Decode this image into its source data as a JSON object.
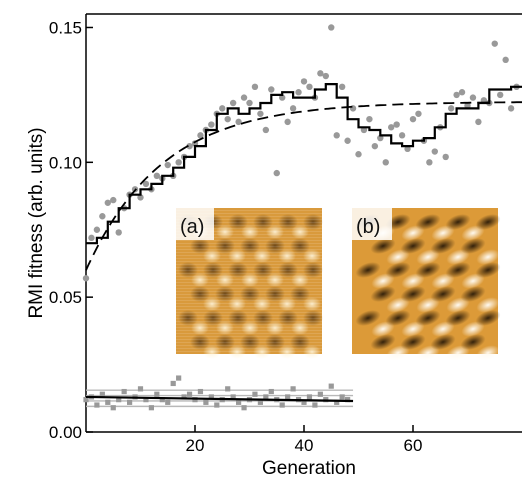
{
  "chart_data": {
    "type": "scatter",
    "title": "",
    "xlabel": "Generation",
    "ylabel": "RMI fitness (arb. units)",
    "xlim": [
      0,
      80
    ],
    "ylim": [
      0,
      0.155
    ],
    "xticks": [
      20,
      40,
      60
    ],
    "xtick_labels": [
      "20",
      "40",
      "60"
    ],
    "yticks": [
      0.0,
      0.05,
      0.1,
      0.15
    ],
    "ytick_labels": [
      "0.00",
      "0.05",
      "0.10",
      "0.15"
    ],
    "grid": false,
    "legend": "none",
    "series": [
      {
        "kind": "scatter",
        "color": "#999999",
        "points": [
          [
            0,
            0.057
          ],
          [
            1,
            0.072
          ],
          [
            2,
            0.075
          ],
          [
            3,
            0.08
          ],
          [
            4,
            0.085
          ],
          [
            5,
            0.086
          ],
          [
            6,
            0.074
          ],
          [
            7,
            0.083
          ],
          [
            8,
            0.088
          ],
          [
            9,
            0.09
          ],
          [
            10,
            0.087
          ],
          [
            11,
            0.092
          ],
          [
            12,
            0.09
          ],
          [
            13,
            0.095
          ],
          [
            14,
            0.094
          ],
          [
            15,
            0.099
          ],
          [
            16,
            0.095
          ],
          [
            17,
            0.1
          ],
          [
            18,
            0.102
          ],
          [
            19,
            0.106
          ],
          [
            20,
            0.107
          ],
          [
            21,
            0.11
          ],
          [
            22,
            0.112
          ],
          [
            23,
            0.114
          ],
          [
            24,
            0.118
          ],
          [
            25,
            0.12
          ],
          [
            26,
            0.116
          ],
          [
            27,
            0.122
          ],
          [
            28,
            0.115
          ],
          [
            29,
            0.124
          ],
          [
            30,
            0.122
          ],
          [
            31,
            0.128
          ],
          [
            32,
            0.118
          ],
          [
            33,
            0.112
          ],
          [
            34,
            0.127
          ],
          [
            35,
            0.096
          ],
          [
            36,
            0.124
          ],
          [
            37,
            0.115
          ],
          [
            38,
            0.12
          ],
          [
            39,
            0.126
          ],
          [
            40,
            0.13
          ],
          [
            41,
            0.128
          ],
          [
            42,
            0.124
          ],
          [
            43,
            0.133
          ],
          [
            44,
            0.132
          ],
          [
            45,
            0.15
          ],
          [
            46,
            0.11
          ],
          [
            47,
            0.128
          ],
          [
            48,
            0.108
          ],
          [
            49,
            0.12
          ],
          [
            50,
            0.103
          ],
          [
            51,
            0.112
          ],
          [
            52,
            0.116
          ],
          [
            53,
            0.106
          ],
          [
            54,
            0.109
          ],
          [
            55,
            0.1
          ],
          [
            56,
            0.113
          ],
          [
            57,
            0.114
          ],
          [
            58,
            0.11
          ],
          [
            59,
            0.105
          ],
          [
            60,
            0.116
          ],
          [
            61,
            0.118
          ],
          [
            62,
            0.108
          ],
          [
            63,
            0.1
          ],
          [
            64,
            0.104
          ],
          [
            65,
            0.113
          ],
          [
            66,
            0.102
          ],
          [
            67,
            0.12
          ],
          [
            68,
            0.125
          ],
          [
            69,
            0.126
          ],
          [
            70,
            0.121
          ],
          [
            71,
            0.124
          ],
          [
            72,
            0.115
          ],
          [
            73,
            0.123
          ],
          [
            74,
            0.122
          ],
          [
            75,
            0.144
          ],
          [
            76,
            0.125
          ],
          [
            77,
            0.138
          ],
          [
            78,
            0.12
          ],
          [
            79,
            0.128
          ]
        ]
      },
      {
        "kind": "step",
        "color": "#000000",
        "points": [
          [
            0,
            0.07
          ],
          [
            2,
            0.072
          ],
          [
            4,
            0.078
          ],
          [
            6,
            0.083
          ],
          [
            8,
            0.088
          ],
          [
            10,
            0.09
          ],
          [
            12,
            0.092
          ],
          [
            14,
            0.095
          ],
          [
            16,
            0.098
          ],
          [
            18,
            0.102
          ],
          [
            20,
            0.106
          ],
          [
            22,
            0.112
          ],
          [
            24,
            0.118
          ],
          [
            26,
            0.12
          ],
          [
            28,
            0.118
          ],
          [
            30,
            0.12
          ],
          [
            32,
            0.122
          ],
          [
            34,
            0.125
          ],
          [
            36,
            0.126
          ],
          [
            38,
            0.124
          ],
          [
            40,
            0.124
          ],
          [
            42,
            0.127
          ],
          [
            44,
            0.129
          ],
          [
            46,
            0.124
          ],
          [
            48,
            0.116
          ],
          [
            50,
            0.113
          ],
          [
            52,
            0.112
          ],
          [
            54,
            0.11
          ],
          [
            56,
            0.107
          ],
          [
            58,
            0.106
          ],
          [
            60,
            0.108
          ],
          [
            62,
            0.109
          ],
          [
            64,
            0.113
          ],
          [
            66,
            0.118
          ],
          [
            68,
            0.12
          ],
          [
            70,
            0.12
          ],
          [
            72,
            0.122
          ],
          [
            74,
            0.127
          ],
          [
            76,
            0.127
          ],
          [
            78,
            0.128
          ],
          [
            80,
            0.128
          ]
        ]
      },
      {
        "kind": "fit-dashed",
        "color": "#000000",
        "formula": "0.1225 - 0.0625*exp(-x/14)"
      },
      {
        "kind": "lower-scatter",
        "color": "#999999",
        "points": [
          [
            0,
            0.012
          ],
          [
            1,
            0.013
          ],
          [
            2,
            0.01
          ],
          [
            3,
            0.014
          ],
          [
            4,
            0.011
          ],
          [
            5,
            0.009
          ],
          [
            6,
            0.012
          ],
          [
            7,
            0.015
          ],
          [
            8,
            0.011
          ],
          [
            9,
            0.013
          ],
          [
            10,
            0.016
          ],
          [
            11,
            0.012
          ],
          [
            12,
            0.009
          ],
          [
            13,
            0.014
          ],
          [
            14,
            0.012
          ],
          [
            15,
            0.011
          ],
          [
            16,
            0.018
          ],
          [
            17,
            0.02
          ],
          [
            18,
            0.013
          ],
          [
            19,
            0.014
          ],
          [
            20,
            0.012
          ],
          [
            21,
            0.015
          ],
          [
            22,
            0.011
          ],
          [
            23,
            0.013
          ],
          [
            24,
            0.01
          ],
          [
            25,
            0.012
          ],
          [
            26,
            0.016
          ],
          [
            27,
            0.013
          ],
          [
            28,
            0.011
          ],
          [
            29,
            0.009
          ],
          [
            30,
            0.012
          ],
          [
            31,
            0.014
          ],
          [
            32,
            0.011
          ],
          [
            33,
            0.013
          ],
          [
            34,
            0.015
          ],
          [
            35,
            0.012
          ],
          [
            36,
            0.01
          ],
          [
            37,
            0.013
          ],
          [
            38,
            0.016
          ],
          [
            39,
            0.012
          ],
          [
            40,
            0.011
          ],
          [
            41,
            0.013
          ],
          [
            42,
            0.01
          ],
          [
            43,
            0.014
          ],
          [
            44,
            0.012
          ],
          [
            45,
            0.017
          ],
          [
            46,
            0.011
          ],
          [
            47,
            0.013
          ],
          [
            48,
            0.012
          ]
        ]
      },
      {
        "kind": "lower-fit",
        "color": "#000000",
        "points": [
          [
            0,
            0.013
          ],
          [
            49,
            0.0115
          ]
        ]
      },
      {
        "kind": "lower-band",
        "color": "#b8b8b8",
        "levels": [
          0.0095,
          0.0115,
          0.0135,
          0.0155
        ]
      }
    ]
  },
  "insets": [
    {
      "label": "(a)",
      "base_color": "#d99a3c"
    },
    {
      "label": "(b)",
      "base_color": "#dc9a38"
    }
  ]
}
